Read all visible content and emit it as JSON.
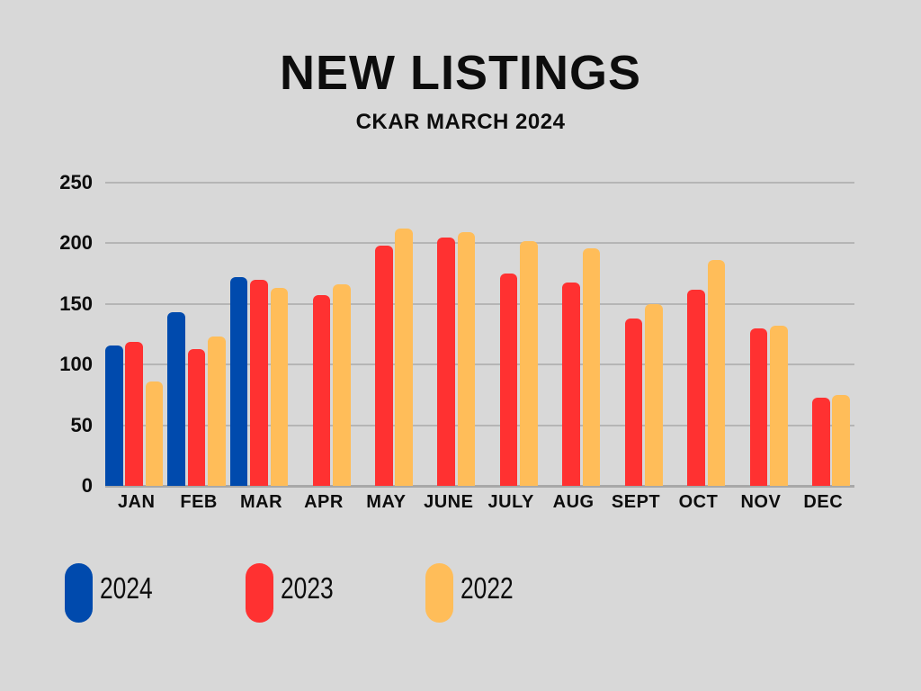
{
  "title": "NEW LISTINGS",
  "subtitle": "CKAR MARCH 2024",
  "colors": {
    "background": "#d8d8d8",
    "series_2024": "#004aad",
    "series_2023": "#ff3131",
    "series_2022": "#ffbd59",
    "gridline": "#b5b5b5",
    "baseline": "#a8a8a8",
    "text": "#0d0d0d"
  },
  "chart_data": {
    "type": "bar",
    "title": "NEW LISTINGS",
    "subtitle": "CKAR MARCH 2024",
    "categories": [
      "JAN",
      "FEB",
      "MAR",
      "APR",
      "MAY",
      "JUNE",
      "JULY",
      "AUG",
      "SEPT",
      "OCT",
      "NOV",
      "DEC"
    ],
    "series": [
      {
        "name": "2024",
        "color": "#004aad",
        "values": [
          116,
          143,
          172,
          null,
          null,
          null,
          null,
          null,
          null,
          null,
          null,
          null
        ]
      },
      {
        "name": "2023",
        "color": "#ff3131",
        "values": [
          119,
          113,
          170,
          157,
          198,
          205,
          175,
          168,
          138,
          162,
          130,
          73
        ]
      },
      {
        "name": "2022",
        "color": "#ffbd59",
        "values": [
          86,
          123,
          163,
          166,
          212,
          209,
          202,
          196,
          150,
          186,
          132,
          75
        ]
      }
    ],
    "xlabel": "",
    "ylabel": "",
    "ylim": [
      0,
      250
    ],
    "ytick_step": 50,
    "yticks": [
      "0",
      "50",
      "100",
      "150",
      "200",
      "250"
    ],
    "grid": true,
    "legend_position": "bottom"
  },
  "legend": {
    "items": [
      {
        "label": "2024",
        "color": "#004aad"
      },
      {
        "label": "2023",
        "color": "#ff3131"
      },
      {
        "label": "2022",
        "color": "#ffbd59"
      }
    ]
  }
}
